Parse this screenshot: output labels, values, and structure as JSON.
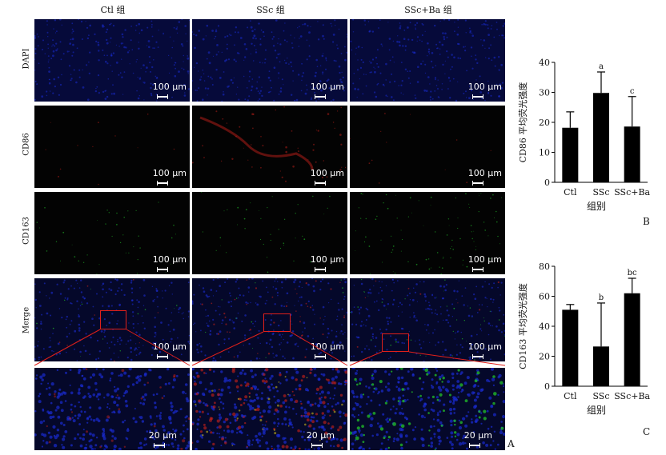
{
  "columns": [
    "Ctl 组",
    "SSc 组",
    "SSc+Ba 组"
  ],
  "rows": [
    "DAPI",
    "CD86",
    "CD163",
    "Merge"
  ],
  "scale_labels": {
    "main": "100 μm",
    "zoom": "20 μm"
  },
  "panel_letters": {
    "a": "A",
    "b": "B",
    "c": "C"
  },
  "colors": {
    "dapi": "#1a2bd0",
    "cd86": "#c0201a",
    "cd163": "#22c02a",
    "highlight_box": "#e0201a",
    "bar": "#000000"
  },
  "chart_data": [
    {
      "type": "bar",
      "categories": [
        "Ctl",
        "SSc",
        "SSc+Ba"
      ],
      "values": [
        18.2,
        29.8,
        18.6
      ],
      "errors": [
        5.3,
        7.0,
        10.0
      ],
      "annotations": [
        "",
        "a",
        "c"
      ],
      "xlabel": "组别",
      "ylabel": "CD86 平均荧光强度",
      "ylim": [
        0,
        40
      ],
      "yticks": [
        0,
        10,
        20,
        30,
        40
      ]
    },
    {
      "type": "bar",
      "categories": [
        "Ctl",
        "SSc",
        "SSc+Ba"
      ],
      "values": [
        51,
        26.5,
        62
      ],
      "errors": [
        3.5,
        29,
        10
      ],
      "annotations": [
        "",
        "b",
        "bc"
      ],
      "xlabel": "组别",
      "ylabel": "CD163 平均荧光强度",
      "ylim": [
        0,
        80
      ],
      "yticks": [
        0,
        20,
        40,
        60,
        80
      ]
    }
  ]
}
